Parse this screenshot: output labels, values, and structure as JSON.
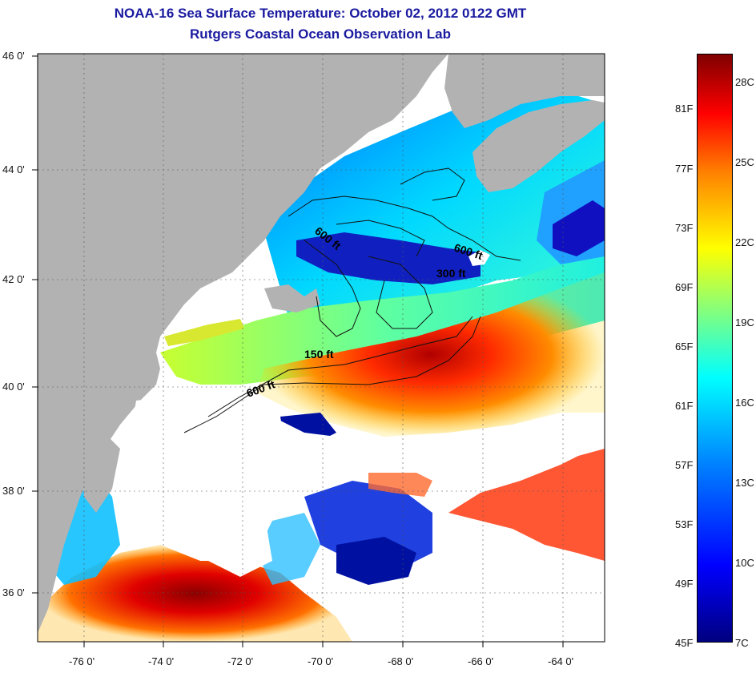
{
  "title": {
    "line1": "NOAA-16 Sea Surface Temperature:  October 02, 2012 0122 GMT",
    "line2": "Rutgers Coastal Ocean Observation Lab"
  },
  "map": {
    "lat_labels": [
      "46 0'",
      "44 0'",
      "42 0'",
      "40 0'",
      "38 0'",
      "36 0'"
    ],
    "lon_labels": [
      "-76 0'",
      "-74 0'",
      "-72 0'",
      "-70 0'",
      "-68 0'",
      "-66 0'",
      "-64 0'"
    ],
    "contour_labels": [
      "600 ft",
      "600 ft",
      "300 ft",
      "150 ft",
      "600 ft"
    ],
    "colors": {
      "land": "#b2b2b2",
      "cloud": "#ffffff",
      "frame": "#000000"
    }
  },
  "colorbar": {
    "fahrenheit_labels": [
      "81F",
      "77F",
      "73F",
      "69F",
      "65F",
      "61F",
      "57F",
      "53F",
      "49F",
      "45F"
    ],
    "celsius_labels": [
      "28C",
      "25C",
      "22C",
      "19C",
      "16C",
      "13C",
      "10C",
      "7C"
    ],
    "colormap": "jet"
  }
}
